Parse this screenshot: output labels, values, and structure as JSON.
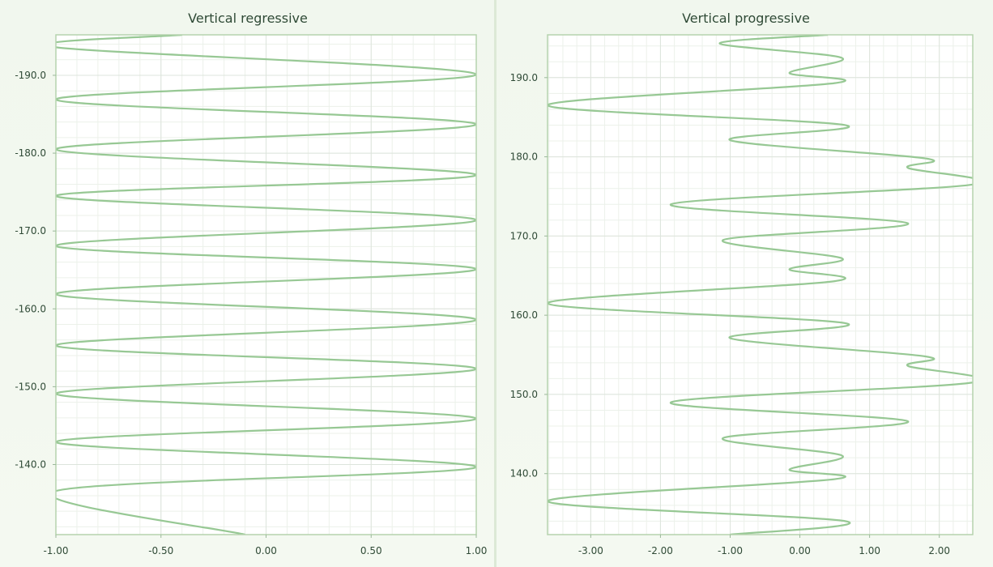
{
  "colors": {
    "line": "#97c894",
    "plot_border": "#b5d3ae",
    "grid_major": "#dde4dc",
    "grid_minor": "#ecf1ea",
    "plot_bg": "#ffffff"
  },
  "chart_data": [
    {
      "type": "line",
      "title": "Vertical regressive",
      "orientation": "vertical",
      "xlabel": "",
      "ylabel": "",
      "xlim": [
        -1.0,
        1.0
      ],
      "ylim": [
        -195.2,
        -131.0
      ],
      "y_reversed": true,
      "x_ticks": [
        -1.0,
        -0.5,
        0.0,
        0.5,
        1.0
      ],
      "x_tick_labels": [
        "-1.00",
        "-0.50",
        "0.00",
        "0.50",
        "1.00"
      ],
      "y_ticks": [
        -190,
        -180,
        -170,
        -160,
        -150,
        -140
      ],
      "y_tick_labels": [
        "-190.0",
        "-180.0",
        "-170.0",
        "-160.0",
        "-150.0",
        "-140.0"
      ],
      "grid": true,
      "series": [
        {
          "values_x": [
            -0.4,
            -1,
            1,
            -1,
            1,
            -1,
            1,
            -1,
            1,
            -1,
            1,
            -1,
            1,
            -1,
            1,
            -1,
            1,
            -1,
            1,
            -1,
            -0.1
          ],
          "values_y": [
            -195.2,
            -193.6,
            -190.1,
            -186.9,
            -183.7,
            -180.5,
            -177.2,
            -174.5,
            -171.4,
            -168.1,
            -165.1,
            -161.9,
            -158.6,
            -155.3,
            -152.3,
            -149.1,
            -145.9,
            -142.9,
            -139.7,
            -136.6,
            -131.0
          ]
        }
      ]
    },
    {
      "type": "line",
      "title": "Vertical progressive",
      "orientation": "vertical",
      "xlabel": "",
      "ylabel": "",
      "xlim": [
        -3.62,
        2.48
      ],
      "ylim": [
        132.3,
        195.4
      ],
      "x_ticks": [
        -3,
        -2,
        -1,
        0,
        1,
        2
      ],
      "x_tick_labels": [
        "-3.00",
        "-2.00",
        "-1.00",
        "0.00",
        "1.00",
        "2.00"
      ],
      "y_ticks": [
        140,
        150,
        160,
        170,
        180,
        190
      ],
      "y_tick_labels": [
        "140.0",
        "150.0",
        "160.0",
        "170.0",
        "180.0",
        "190.0"
      ],
      "grid": true,
      "series": [
        {
          "values_x": [
            0.4,
            -1.15,
            0.6,
            -0.15,
            0.5,
            -3.62,
            0.65,
            -1.0,
            1.8,
            1.55,
            2.48,
            -1.85,
            1.55,
            -1.1,
            0.6,
            -0.15,
            0.5,
            -3.62,
            0.65,
            -1.0,
            1.8,
            1.55,
            2.48,
            -1.85,
            1.55,
            -1.1,
            0.6,
            -0.15,
            0.5,
            -3.62,
            0.65,
            -1.0
          ],
          "values_y": [
            195.4,
            194.3,
            192.5,
            190.6,
            189.3,
            186.5,
            184.0,
            182.1,
            179.8,
            178.6,
            176.5,
            174.0,
            171.6,
            169.5,
            167.2,
            165.8,
            164.3,
            161.5,
            159.0,
            157.1,
            154.8,
            153.6,
            151.5,
            149.0,
            146.6,
            144.5,
            142.3,
            140.5,
            139.3,
            136.5,
            134.0,
            132.3
          ]
        }
      ]
    }
  ]
}
